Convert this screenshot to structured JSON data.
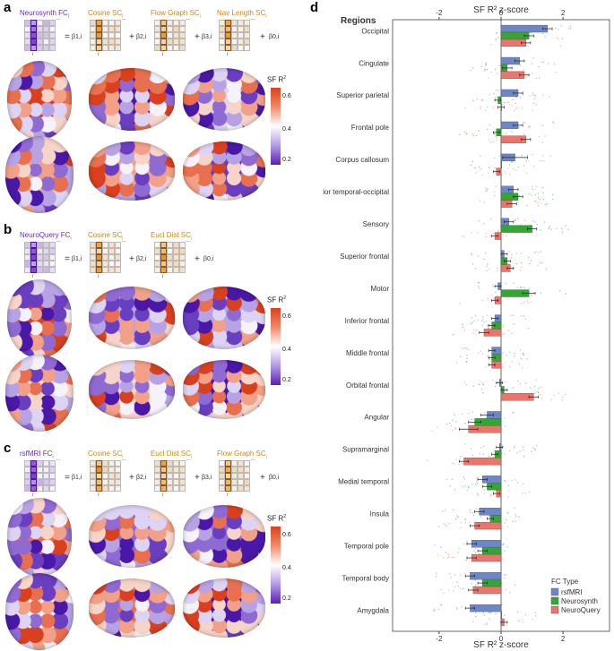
{
  "panels": {
    "a": {
      "letter": "a",
      "fc_label": "Neurosynth FC",
      "fc_sub": "i",
      "sc_terms": [
        {
          "label": "Cosine SC",
          "sub": "i",
          "beta": "β1,i"
        },
        {
          "label": "Flow Graph SC",
          "sub": "i",
          "beta": "β2,i"
        },
        {
          "label": "Nav Length SC",
          "sub": "i",
          "beta": "β3,i"
        }
      ],
      "intercept": "β0,i",
      "colorbar": {
        "title": "SF R",
        "sup": "2",
        "ticks": [
          "0.6",
          "0.4",
          "0.2"
        ]
      }
    },
    "b": {
      "letter": "b",
      "fc_label": "NeuroQuery FC",
      "fc_sub": "i",
      "sc_terms": [
        {
          "label": "Cosine SC",
          "sub": "i",
          "beta": "β1,i"
        },
        {
          "label": "Eucl Dist SC",
          "sub": "i",
          "beta": "β2,i"
        }
      ],
      "intercept": "β0,i",
      "colorbar": {
        "title": "SF R",
        "sup": "2",
        "ticks": [
          "0.6",
          "0.4",
          "0.2"
        ]
      }
    },
    "c": {
      "letter": "c",
      "fc_label": "rsfMRI FC",
      "fc_sub": "i",
      "sc_terms": [
        {
          "label": "Cosine SC",
          "sub": "i",
          "beta": "β1,i"
        },
        {
          "label": "Eucl Dist SC",
          "sub": "i",
          "beta": "β2,i"
        },
        {
          "label": "Flow Graph SC",
          "sub": "i",
          "beta": "β3,i"
        }
      ],
      "intercept": "β0,i",
      "colorbar": {
        "title": "SF R",
        "sup": "2",
        "ticks": [
          "0.6",
          "0.4",
          "0.2"
        ]
      }
    },
    "d": {
      "letter": "d"
    }
  },
  "labels": {
    "dots": "...",
    "i_label": "i",
    "eq": "=",
    "plus": "+"
  },
  "chart_data": {
    "type": "bar",
    "orientation": "horizontal",
    "title": "SF R² z-score",
    "xlabel": "SF R² z-score",
    "ylabel": "Regions",
    "xlim": [
      -3.5,
      3.5
    ],
    "xticks": [
      -2,
      0,
      2
    ],
    "categories": [
      "Occipital",
      "Cingulate",
      "Superior parietal",
      "Frontal pole",
      "Corpus callosum",
      "Inferior temporal-occipital",
      "Sensory",
      "Superior frontal",
      "Motor",
      "Inferior frontal",
      "Middle frontal",
      "Orbital frontal",
      "Angular",
      "Supramarginal",
      "Medial temporal",
      "Insula",
      "Temporal pole",
      "Temporal body",
      "Amygdala"
    ],
    "series": [
      {
        "name": "rsfMRI",
        "color": "#6f86c6",
        "values": [
          1.5,
          0.6,
          0.55,
          0.55,
          0.45,
          0.4,
          0.25,
          0.1,
          -0.1,
          -0.2,
          -0.3,
          -0.05,
          -0.45,
          -0.05,
          -0.6,
          -0.7,
          -0.95,
          -1.0,
          -1.0
        ],
        "errors": [
          0.15,
          0.15,
          0.15,
          0.15,
          0.4,
          0.15,
          0.15,
          0.1,
          0.1,
          0.1,
          0.1,
          0.1,
          0.2,
          0.1,
          0.15,
          0.15,
          0.15,
          0.15,
          0.15
        ]
      },
      {
        "name": "Neurosynth",
        "color": "#35a535",
        "values": [
          0.9,
          0.2,
          -0.1,
          -0.15,
          0.0,
          0.55,
          1.0,
          0.2,
          0.9,
          -0.3,
          -0.3,
          0.1,
          -0.85,
          -0.2,
          -0.45,
          -0.35,
          -0.6,
          -0.6,
          0.0
        ],
        "errors": [
          0.15,
          0.15,
          0.1,
          0.1,
          0.0,
          0.15,
          0.15,
          0.1,
          0.2,
          0.1,
          0.1,
          0.1,
          0.2,
          0.1,
          0.15,
          0.1,
          0.15,
          0.15,
          0.0
        ]
      },
      {
        "name": "NeuroQuery",
        "color": "#e9756d",
        "values": [
          0.8,
          0.75,
          0.0,
          0.8,
          -0.15,
          0.35,
          -0.2,
          0.3,
          -0.2,
          -0.55,
          -0.3,
          1.05,
          -1.05,
          -1.2,
          -0.15,
          -0.85,
          -0.95,
          -0.9,
          0.1
        ],
        "errors": [
          0.15,
          0.15,
          0.1,
          0.15,
          0.1,
          0.15,
          0.1,
          0.1,
          0.1,
          0.15,
          0.1,
          0.15,
          0.3,
          0.15,
          0.1,
          0.15,
          0.15,
          0.15,
          0.1
        ]
      }
    ],
    "legend": {
      "title": "FC Type",
      "position": "bottom-right",
      "entries": [
        "rsfMRI",
        "Neurosynth",
        "NeuroQuery"
      ]
    },
    "grid": false
  }
}
